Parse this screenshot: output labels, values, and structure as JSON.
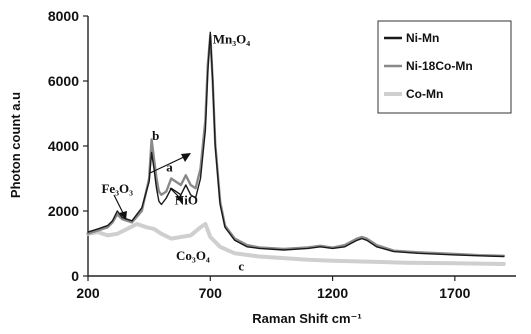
{
  "chart_data": {
    "type": "line",
    "xlabel": "Raman Shift cm⁻¹",
    "ylabel": "Photon count a.u",
    "xlim": [
      200,
      1950
    ],
    "ylim": [
      0,
      8000
    ],
    "xticks": [
      200,
      700,
      1200,
      1700
    ],
    "yticks": [
      0,
      2000,
      4000,
      6000,
      8000
    ],
    "grid": false,
    "legend_position": "top-right",
    "series": [
      {
        "name": "Ni-Mn",
        "color": "#1a1a1a",
        "x": [
          200,
          240,
          280,
          300,
          320,
          340,
          380,
          420,
          450,
          460,
          470,
          480,
          490,
          500,
          520,
          540,
          560,
          580,
          600,
          620,
          640,
          660,
          680,
          690,
          700,
          710,
          720,
          740,
          760,
          800,
          850,
          900,
          1000,
          1100,
          1150,
          1200,
          1250,
          1300,
          1320,
          1340,
          1380,
          1450,
          1550,
          1700,
          1800,
          1900
        ],
        "y": [
          1350,
          1450,
          1550,
          1700,
          2000,
          1800,
          1700,
          2100,
          2900,
          3800,
          3300,
          2700,
          2300,
          2200,
          2400,
          2700,
          2600,
          2500,
          2800,
          2500,
          2400,
          3000,
          4500,
          6300,
          7500,
          6000,
          4000,
          2200,
          1500,
          1100,
          900,
          850,
          800,
          850,
          900,
          850,
          900,
          1100,
          1150,
          1100,
          900,
          750,
          700,
          650,
          620,
          600
        ]
      },
      {
        "name": "Ni-18Co-Mn",
        "color": "#8a8a8a",
        "x": [
          200,
          240,
          280,
          300,
          320,
          340,
          380,
          420,
          450,
          460,
          470,
          480,
          490,
          500,
          520,
          540,
          560,
          580,
          600,
          620,
          640,
          660,
          680,
          690,
          700,
          710,
          720,
          740,
          760,
          800,
          850,
          900,
          1000,
          1100,
          1150,
          1200,
          1250,
          1300,
          1320,
          1340,
          1380,
          1450,
          1550,
          1700,
          1800,
          1900
        ],
        "y": [
          1300,
          1400,
          1500,
          1650,
          1900,
          1750,
          1650,
          2000,
          3000,
          4200,
          3600,
          3000,
          2600,
          2500,
          2600,
          3000,
          2900,
          2800,
          3100,
          2800,
          2700,
          3300,
          4800,
          6500,
          7400,
          6000,
          4100,
          2300,
          1550,
          1150,
          950,
          880,
          830,
          880,
          930,
          870,
          950,
          1150,
          1200,
          1150,
          950,
          780,
          730,
          680,
          640,
          620
        ]
      },
      {
        "name": "Co-Mn",
        "color": "#cfcfcf",
        "x": [
          200,
          240,
          280,
          320,
          360,
          400,
          440,
          470,
          500,
          540,
          580,
          620,
          660,
          680,
          700,
          740,
          800,
          900,
          1000,
          1100,
          1200,
          1300,
          1400,
          1500,
          1600,
          1700,
          1800,
          1900
        ],
        "y": [
          1300,
          1350,
          1250,
          1300,
          1450,
          1600,
          1500,
          1450,
          1300,
          1150,
          1200,
          1250,
          1500,
          1600,
          1200,
          900,
          700,
          600,
          550,
          500,
          470,
          450,
          430,
          410,
          400,
          390,
          380,
          370
        ]
      }
    ],
    "annotations": [
      {
        "text": "Mn₃O₄",
        "x": 710,
        "y": 7150
      },
      {
        "text": "b",
        "x": 462,
        "y": 4180
      },
      {
        "text": "a",
        "x": 520,
        "y": 3220
      },
      {
        "text": "Fe₃O₃",
        "x": 255,
        "y": 2550
      },
      {
        "text": "NiO",
        "x": 555,
        "y": 2200
      },
      {
        "text": "Co₃O₄",
        "x": 560,
        "y": 490
      },
      {
        "text": "c",
        "x": 815,
        "y": 170
      }
    ]
  }
}
